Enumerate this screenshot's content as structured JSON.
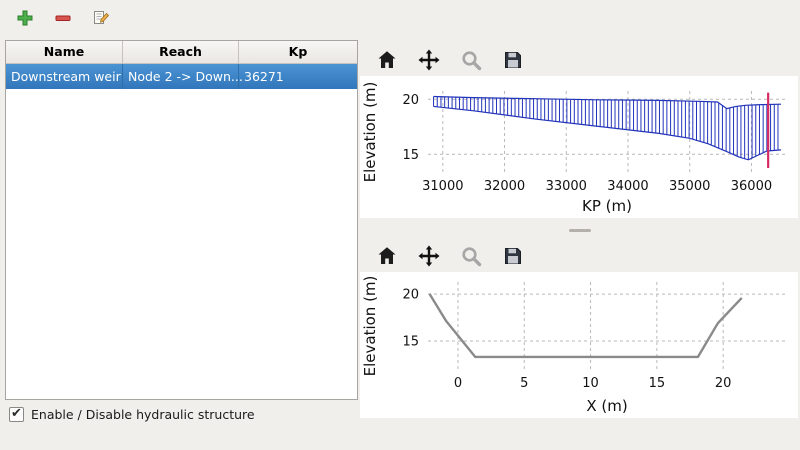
{
  "main_toolbar": {
    "buttons": [
      {
        "name": "add",
        "icon": "plus-icon",
        "color": "#4cae4c"
      },
      {
        "name": "remove",
        "icon": "minus-icon",
        "color": "#d9534f"
      },
      {
        "name": "edit",
        "icon": "edit-icon",
        "color": "#f0ad4e"
      }
    ]
  },
  "structures_table": {
    "columns": [
      "Name",
      "Reach",
      "Kp"
    ],
    "rows": [
      {
        "name": "Downstream weir",
        "reach": "Node 2 -> Down...",
        "kp": "36271",
        "selected": true
      }
    ],
    "selection_color": "#3a82c6"
  },
  "footer": {
    "checkbox_label": "Enable / Disable hydraulic structure",
    "checked": true,
    "check_glyph": "✔"
  },
  "chart_toolbar_icons": [
    "home-icon",
    "pan-icon",
    "zoom-icon",
    "save-icon"
  ],
  "chart_data": [
    {
      "type": "area",
      "title": "",
      "xlabel": "KP (m)",
      "ylabel": "Elevation (m)",
      "xlim": [
        30760,
        36560
      ],
      "ylim": [
        13.3,
        20.75
      ],
      "xticks": [
        31000,
        32000,
        33000,
        34000,
        35000,
        36000
      ],
      "yticks": [
        15,
        20
      ],
      "grid": true,
      "hatch_color": "#2233bb",
      "hatch_step": 60,
      "x_range": [
        30850,
        36480
      ],
      "top_profile": [
        [
          30850,
          20.25
        ],
        [
          31500,
          20.15
        ],
        [
          32500,
          20.05
        ],
        [
          33500,
          19.95
        ],
        [
          34500,
          19.9
        ],
        [
          35200,
          19.8
        ],
        [
          35450,
          19.75
        ],
        [
          35600,
          19.15
        ],
        [
          35750,
          19.35
        ],
        [
          35900,
          19.45
        ],
        [
          36100,
          19.5
        ],
        [
          36480,
          19.55
        ]
      ],
      "bottom_profile": [
        [
          30850,
          19.35
        ],
        [
          31500,
          18.95
        ],
        [
          32500,
          18.2
        ],
        [
          33500,
          17.55
        ],
        [
          34500,
          16.9
        ],
        [
          35000,
          16.45
        ],
        [
          35300,
          15.95
        ],
        [
          35600,
          15.25
        ],
        [
          35800,
          14.75
        ],
        [
          35950,
          14.5
        ],
        [
          36100,
          14.9
        ],
        [
          36250,
          15.3
        ],
        [
          36480,
          15.4
        ]
      ],
      "marker": {
        "x": 36271,
        "y0": 13.75,
        "y1": 20.6,
        "color": "#d52b63"
      }
    },
    {
      "type": "line",
      "title": "",
      "xlabel": "X (m)",
      "ylabel": "Elevation (m)",
      "xlim": [
        -2.26,
        24.74
      ],
      "ylim": [
        11.9,
        21.3
      ],
      "xticks": [
        0,
        5,
        10,
        15,
        20
      ],
      "yticks": [
        15,
        20
      ],
      "grid": true,
      "line_color": "#8a8a8a",
      "points": [
        [
          -2.15,
          20.05
        ],
        [
          -0.9,
          17.15
        ],
        [
          1.3,
          13.3
        ],
        [
          18.1,
          13.3
        ],
        [
          19.6,
          16.9
        ],
        [
          21.4,
          19.6
        ]
      ]
    }
  ]
}
